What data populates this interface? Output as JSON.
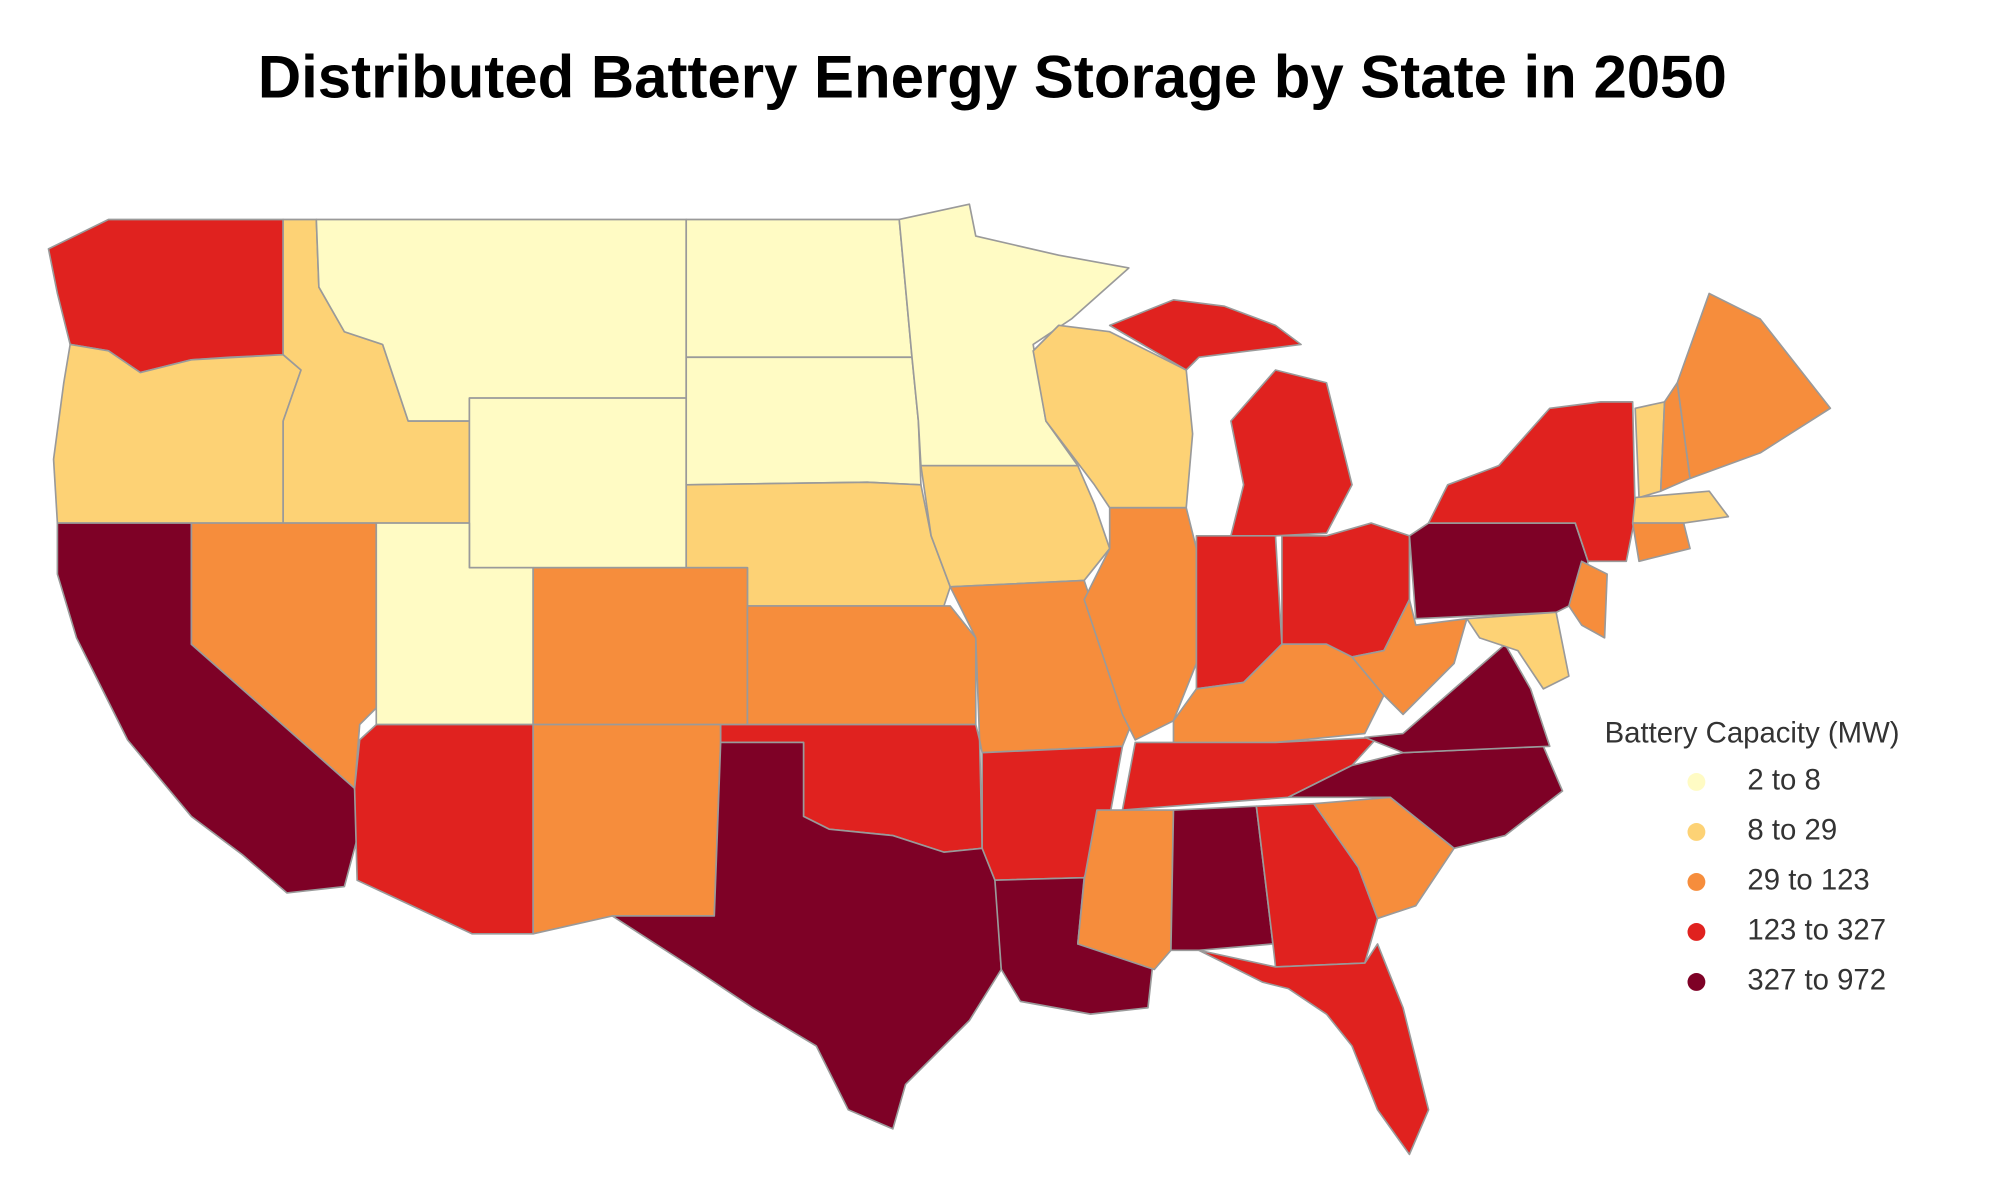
{
  "title": "Distributed Battery Energy Storage by State in 2050",
  "legend": {
    "title": "Battery Capacity (MW)",
    "items": [
      {
        "label": "2 to 8",
        "color": "#fffbc4"
      },
      {
        "label": "8 to 29",
        "color": "#fdd275"
      },
      {
        "label": "29 to 123",
        "color": "#f68d3c"
      },
      {
        "label": "123 to 327",
        "color": "#e0221f"
      },
      {
        "label": "327 to 972",
        "color": "#7e0126"
      }
    ]
  }
}
